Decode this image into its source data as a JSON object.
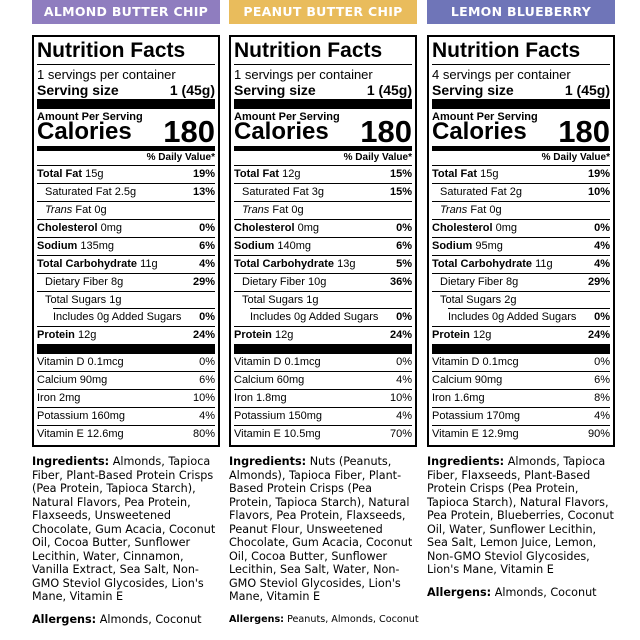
{
  "products": [
    {
      "flavor": "ALMOND BUTTER CHIP",
      "badge_color": "#8F7DBF",
      "label": {
        "title": "Nutrition Facts",
        "servings_per_container": "1 servings per container",
        "serving_size_label": "Serving size",
        "serving_size_value": "1 (45g)",
        "amount_per_serving": "Amount Per Serving",
        "calories_label": "Calories",
        "calories_value": "180",
        "daily_value_header": "% Daily Value*",
        "nutrients": {
          "total_fat": {
            "name": "Total Fat",
            "amount": "15g",
            "dv": "19%"
          },
          "saturated_fat": {
            "name": "Saturated Fat",
            "amount": "2.5g",
            "dv": "13%"
          },
          "trans_fat": {
            "name_italic": "Trans",
            "name": "Fat",
            "amount": "0g",
            "dv": ""
          },
          "cholesterol": {
            "name": "Cholesterol",
            "amount": "0mg",
            "dv": "0%"
          },
          "sodium": {
            "name": "Sodium",
            "amount": "135mg",
            "dv": "6%"
          },
          "total_carbohydrate": {
            "name": "Total Carbohydrate",
            "amount": "11g",
            "dv": "4%"
          },
          "dietary_fiber": {
            "name": "Dietary Fiber",
            "amount": "8g",
            "dv": "29%"
          },
          "total_sugars": {
            "name": "Total Sugars",
            "amount": "1g",
            "dv": ""
          },
          "added_sugars": {
            "name": "Includes 0g Added Sugars",
            "dv": "0%"
          },
          "protein": {
            "name": "Protein",
            "amount": "12g",
            "dv": "24%"
          }
        },
        "vitamins": [
          {
            "name": "Vitamin D 0.1mcg",
            "dv": "0%"
          },
          {
            "name": "Calcium 90mg",
            "dv": "6%"
          },
          {
            "name": "Iron 2mg",
            "dv": "10%"
          },
          {
            "name": "Potassium 160mg",
            "dv": "4%"
          },
          {
            "name": "Vitamin E 12.6mg",
            "dv": "80%"
          }
        ]
      },
      "ingredients_label": "Ingredients:",
      "ingredients": "Almonds, Tapioca Fiber, Plant-Based Protein Crisps (Pea Protein, Tapioca Starch), Natural Flavors, Pea Protein, Flaxseeds, Unsweetened Chocolate, Gum Acacia, Coconut Oil, Cocoa Butter, Sunflower Lecithin, Water, Cinnamon, Vanilla Extract, Sea Salt, Non-GMO Steviol Glycosides, Lion's Mane, Vitamin E",
      "allergens_label": "Allergens:",
      "allergens": "Almonds, Coconut"
    },
    {
      "flavor": "PEANUT BUTTER CHIP",
      "badge_color": "#E9BC5C",
      "label": {
        "title": "Nutrition Facts",
        "servings_per_container": "1 servings per container",
        "serving_size_label": "Serving size",
        "serving_size_value": "1 (45g)",
        "amount_per_serving": "Amount Per Serving",
        "calories_label": "Calories",
        "calories_value": "180",
        "daily_value_header": "% Daily Value*",
        "nutrients": {
          "total_fat": {
            "name": "Total Fat",
            "amount": "12g",
            "dv": "15%"
          },
          "saturated_fat": {
            "name": "Saturated Fat",
            "amount": "3g",
            "dv": "15%"
          },
          "trans_fat": {
            "name_italic": "Trans",
            "name": "Fat",
            "amount": "0g",
            "dv": ""
          },
          "cholesterol": {
            "name": "Cholesterol",
            "amount": "0mg",
            "dv": "0%"
          },
          "sodium": {
            "name": "Sodium",
            "amount": "140mg",
            "dv": "6%"
          },
          "total_carbohydrate": {
            "name": "Total Carbohydrate",
            "amount": "13g",
            "dv": "5%"
          },
          "dietary_fiber": {
            "name": "Dietary Fiber",
            "amount": "10g",
            "dv": "36%"
          },
          "total_sugars": {
            "name": "Total Sugars",
            "amount": "1g",
            "dv": ""
          },
          "added_sugars": {
            "name": "Includes 0g Added Sugars",
            "dv": "0%"
          },
          "protein": {
            "name": "Protein",
            "amount": "12g",
            "dv": "24%"
          }
        },
        "vitamins": [
          {
            "name": "Vitamin D 0.1mcg",
            "dv": "0%"
          },
          {
            "name": "Calcium 60mg",
            "dv": "4%"
          },
          {
            "name": "Iron 1.8mg",
            "dv": "10%"
          },
          {
            "name": "Potassium 150mg",
            "dv": "4%"
          },
          {
            "name": "Vitamin E 10.5mg",
            "dv": "70%"
          }
        ]
      },
      "ingredients_label": "Ingredients:",
      "ingredients": "Nuts (Peanuts, Almonds), Tapioca Fiber, Plant-Based Protein Crisps (Pea Protein, Tapioca Starch), Natural Flavors, Pea Protein, Flaxseeds, Peanut Flour, Unsweetened Chocolate, Gum Acacia, Coconut Oil, Cocoa Butter, Sunflower Lecithin, Sea Salt, Water, Non-GMO Steviol Glycosides, Lion's Mane, Vitamin E",
      "allergens_label": "Allergens:",
      "allergens": "Peanuts, Almonds, Coconut"
    },
    {
      "flavor": "LEMON BLUEBERRY",
      "badge_color": "#6F75B8",
      "label": {
        "title": "Nutrition Facts",
        "servings_per_container": "4 servings per container",
        "serving_size_label": "Serving size",
        "serving_size_value": "1 (45g)",
        "amount_per_serving": "Amount Per Serving",
        "calories_label": "Calories",
        "calories_value": "180",
        "daily_value_header": "% Daily Value*",
        "nutrients": {
          "total_fat": {
            "name": "Total Fat",
            "amount": "15g",
            "dv": "19%"
          },
          "saturated_fat": {
            "name": "Saturated Fat",
            "amount": "2g",
            "dv": "10%"
          },
          "trans_fat": {
            "name_italic": "Trans",
            "name": "Fat",
            "amount": "0g",
            "dv": ""
          },
          "cholesterol": {
            "name": "Cholesterol",
            "amount": "0mg",
            "dv": "0%"
          },
          "sodium": {
            "name": "Sodium",
            "amount": "95mg",
            "dv": "4%"
          },
          "total_carbohydrate": {
            "name": "Total Carbohydrate",
            "amount": "11g",
            "dv": "4%"
          },
          "dietary_fiber": {
            "name": "Dietary Fiber",
            "amount": "8g",
            "dv": "29%"
          },
          "total_sugars": {
            "name": "Total Sugars",
            "amount": "2g",
            "dv": ""
          },
          "added_sugars": {
            "name": "Includes 0g Added Sugars",
            "dv": "0%"
          },
          "protein": {
            "name": "Protein",
            "amount": "12g",
            "dv": "24%"
          }
        },
        "vitamins": [
          {
            "name": "Vitamin D 0.1mcg",
            "dv": "0%"
          },
          {
            "name": "Calcium 90mg",
            "dv": "6%"
          },
          {
            "name": "Iron 1.6mg",
            "dv": "8%"
          },
          {
            "name": "Potassium 170mg",
            "dv": "4%"
          },
          {
            "name": "Vitamin E 12.9mg",
            "dv": "90%"
          }
        ]
      },
      "ingredients_label": "Ingredients:",
      "ingredients": "Almonds, Tapioca Fiber, Flaxseeds, Plant-Based Protein Crisps (Pea Protein, Tapioca Starch), Natural Flavors, Pea Protein, Blueberries, Coconut Oil, Water, Sunflower Lecithin, Sea Salt, Lemon Juice, Lemon, Non-GMO Steviol Glycosides, Lion's Mane, Vitamin E",
      "allergens_label": "Allergens:",
      "allergens": "Almonds, Coconut"
    }
  ]
}
